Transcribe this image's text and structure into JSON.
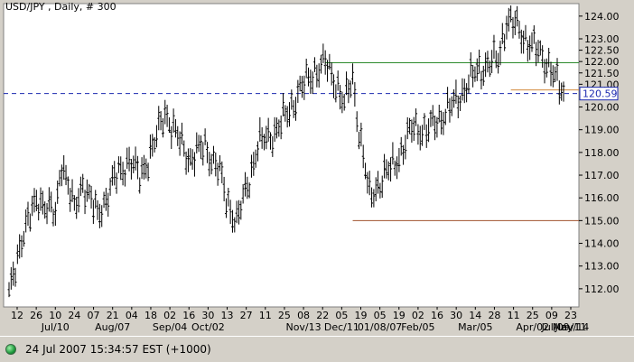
{
  "chart_data": {
    "type": "ohlc",
    "title": "USD/JPY , Daily, # 300",
    "ylim": [
      111.2,
      124.55
    ],
    "y_ticks": [
      "112.00",
      "113.00",
      "114.00",
      "115.00",
      "116.00",
      "117.00",
      "118.00",
      "119.00",
      "120.00",
      "121.00",
      "121.50",
      "122.00",
      "122.50",
      "123.00",
      "124.00"
    ],
    "current_price": "120.59",
    "x_tick_labels": [
      "12",
      "26",
      "10",
      "24",
      "07",
      "21",
      "04",
      "18",
      "02",
      "16",
      "30",
      "13",
      "27",
      "11",
      "25",
      "08",
      "22",
      "05",
      "19",
      "05",
      "19",
      "02",
      "16",
      "30",
      "14",
      "28",
      "11",
      "25",
      "09",
      "23"
    ],
    "x_month_labels": [
      "Jul/10",
      "Aug/07",
      "Sep/04",
      "Oct/02",
      "Nov/13",
      "Dec/11",
      "01/08/07",
      "Feb/05",
      "Mar/05",
      "Apr/02",
      "May/14",
      "Jun/11",
      "Jul/09"
    ],
    "bars_count": 300,
    "price_path_anchors": [
      [
        0,
        111.6
      ],
      [
        6,
        114.3
      ],
      [
        14,
        116.0
      ],
      [
        22,
        115.2
      ],
      [
        25,
        117.7
      ],
      [
        31,
        115.4
      ],
      [
        35,
        116.7
      ],
      [
        42,
        115.2
      ],
      [
        50,
        116.8
      ],
      [
        57,
        117.7
      ],
      [
        62,
        116.9
      ],
      [
        69,
        118.4
      ],
      [
        74,
        119.8
      ],
      [
        79,
        118.8
      ],
      [
        86,
        117.7
      ],
      [
        93,
        118.3
      ],
      [
        100,
        117.1
      ],
      [
        103,
        116.0
      ],
      [
        108,
        114.9
      ],
      [
        114,
        116.9
      ],
      [
        118,
        118.3
      ],
      [
        127,
        119.0
      ],
      [
        132,
        119.7
      ],
      [
        137,
        120.6
      ],
      [
        145,
        121.6
      ],
      [
        150,
        121.9
      ],
      [
        155,
        121.1
      ],
      [
        159,
        120.1
      ],
      [
        163,
        121.3
      ],
      [
        166,
        119.0
      ],
      [
        171,
        116.0
      ],
      [
        175,
        116.6
      ],
      [
        182,
        117.4
      ],
      [
        187,
        118.2
      ],
      [
        192,
        119.2
      ],
      [
        198,
        118.9
      ],
      [
        203,
        119.4
      ],
      [
        210,
        120.0
      ],
      [
        216,
        120.8
      ],
      [
        222,
        121.6
      ],
      [
        228,
        121.9
      ],
      [
        232,
        122.1
      ],
      [
        236,
        123.8
      ],
      [
        240,
        123.6
      ],
      [
        245,
        123.0
      ],
      [
        249,
        122.6
      ],
      [
        253,
        122.2
      ],
      [
        256,
        121.9
      ],
      [
        260,
        121.0
      ],
      [
        263,
        120.6
      ]
    ],
    "horizontal_lines": [
      {
        "kind": "resistance",
        "color": "#2e8b2e",
        "value": 121.95,
        "x_start": 150,
        "x_end": 300
      },
      {
        "kind": "support",
        "color": "#d28a3c",
        "value": 120.75,
        "x_start": 238,
        "x_end": 300
      },
      {
        "kind": "support",
        "color": "#a0522d",
        "value": 115.0,
        "x_start": 163,
        "x_end": 300
      },
      {
        "kind": "last-price",
        "color": "#1c2ab0",
        "value": 120.59,
        "style": "dashed",
        "x_start": 0,
        "x_end": 300
      }
    ]
  },
  "status": {
    "text": "24 Jul 2007 15:34:57  EST (+1000)"
  }
}
